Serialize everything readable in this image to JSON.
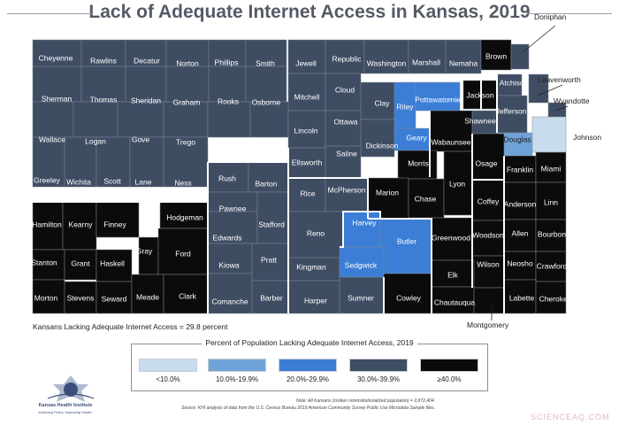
{
  "title": "Lack of Adequate Internet Access in Kansas, 2019",
  "state_stat": "Kansans Lacking Adequate Internet Access = 29.8 percent",
  "legend": {
    "title": "Percent of Population Lacking Adequate Internet Access, 2019",
    "bins": [
      {
        "label": "<10.0%",
        "color": "#c9dcee"
      },
      {
        "label": "10.0%-19.9%",
        "color": "#6fa3d8"
      },
      {
        "label": "20.0%-29.9%",
        "color": "#3c7ed6"
      },
      {
        "label": "30.0%-39.9%",
        "color": "#3f4d63"
      },
      {
        "label": "≥40.0%",
        "color": "#0b0b0b"
      }
    ]
  },
  "label_colors": {
    "dark": "#ffffff",
    "light": "#1a1a1a"
  },
  "border_color": "#ffffff",
  "region_border_color": "#ffffff",
  "counties": [
    {
      "name": "Cheyenne",
      "bin": 3
    },
    {
      "name": "Rawlins",
      "bin": 3
    },
    {
      "name": "Decatur",
      "bin": 3
    },
    {
      "name": "Norton",
      "bin": 3
    },
    {
      "name": "Phillips",
      "bin": 3
    },
    {
      "name": "Smith",
      "bin": 3
    },
    {
      "name": "Jewell",
      "bin": 3
    },
    {
      "name": "Republic",
      "bin": 3
    },
    {
      "name": "Washington",
      "bin": 3
    },
    {
      "name": "Marshall",
      "bin": 3
    },
    {
      "name": "Nemaha",
      "bin": 3
    },
    {
      "name": "Brown",
      "bin": 4
    },
    {
      "name": "Doniphan",
      "bin": 3
    },
    {
      "name": "Sherman",
      "bin": 3
    },
    {
      "name": "Thomas",
      "bin": 3
    },
    {
      "name": "Sheridan",
      "bin": 3
    },
    {
      "name": "Graham",
      "bin": 3
    },
    {
      "name": "Rooks",
      "bin": 3
    },
    {
      "name": "Osborne",
      "bin": 3
    },
    {
      "name": "Mitchell",
      "bin": 3
    },
    {
      "name": "Cloud",
      "bin": 3
    },
    {
      "name": "Clay",
      "bin": 3
    },
    {
      "name": "Riley",
      "bin": 2
    },
    {
      "name": "Pottawatomie",
      "bin": 2
    },
    {
      "name": "Jackson",
      "bin": 4
    },
    {
      "name": "Atchison",
      "bin": 3
    },
    {
      "name": "Leavenworth",
      "bin": 3
    },
    {
      "name": "Jefferson",
      "bin": 3
    },
    {
      "name": "Wyandotte",
      "bin": 3
    },
    {
      "name": "Wallace",
      "bin": 3
    },
    {
      "name": "Logan",
      "bin": 3
    },
    {
      "name": "Gove",
      "bin": 3
    },
    {
      "name": "Trego",
      "bin": 3
    },
    {
      "name": "Ellis",
      "bin": 3
    },
    {
      "name": "Russell",
      "bin": 3
    },
    {
      "name": "Lincoln",
      "bin": 3
    },
    {
      "name": "Ottawa",
      "bin": 3
    },
    {
      "name": "Dickinson",
      "bin": 3
    },
    {
      "name": "Geary",
      "bin": 2
    },
    {
      "name": "Wabaunsee",
      "bin": 4
    },
    {
      "name": "Shawnee",
      "bin": 3
    },
    {
      "name": "Douglas",
      "bin": 1
    },
    {
      "name": "Johnson",
      "bin": 0
    },
    {
      "name": "Ellsworth",
      "bin": 3
    },
    {
      "name": "Saline",
      "bin": 3
    },
    {
      "name": "Morris",
      "bin": 4
    },
    {
      "name": "Osage",
      "bin": 4
    },
    {
      "name": "Franklin",
      "bin": 4
    },
    {
      "name": "Miami",
      "bin": 4
    },
    {
      "name": "Greeley",
      "bin": 3
    },
    {
      "name": "Wichita",
      "bin": 3
    },
    {
      "name": "Scott",
      "bin": 3
    },
    {
      "name": "Lane",
      "bin": 3
    },
    {
      "name": "Ness",
      "bin": 3
    },
    {
      "name": "Rush",
      "bin": 3
    },
    {
      "name": "Barton",
      "bin": 3
    },
    {
      "name": "Rice",
      "bin": 3
    },
    {
      "name": "McPherson",
      "bin": 3
    },
    {
      "name": "Marion",
      "bin": 4
    },
    {
      "name": "Chase",
      "bin": 4
    },
    {
      "name": "Lyon",
      "bin": 4
    },
    {
      "name": "Coffey",
      "bin": 4
    },
    {
      "name": "Anderson",
      "bin": 4
    },
    {
      "name": "Linn",
      "bin": 4
    },
    {
      "name": "Pawnee",
      "bin": 3
    },
    {
      "name": "Hamilton",
      "bin": 4
    },
    {
      "name": "Kearny",
      "bin": 4
    },
    {
      "name": "Finney",
      "bin": 4
    },
    {
      "name": "Hodgeman",
      "bin": 4
    },
    {
      "name": "Edwards",
      "bin": 3
    },
    {
      "name": "Stafford",
      "bin": 3
    },
    {
      "name": "Reno",
      "bin": 3
    },
    {
      "name": "Harvey",
      "bin": 2
    },
    {
      "name": "Butler",
      "bin": 2
    },
    {
      "name": "Greenwood",
      "bin": 4
    },
    {
      "name": "Woodson",
      "bin": 4
    },
    {
      "name": "Allen",
      "bin": 4
    },
    {
      "name": "Bourbon",
      "bin": 4
    },
    {
      "name": "Gray",
      "bin": 4
    },
    {
      "name": "Ford",
      "bin": 4
    },
    {
      "name": "Stanton",
      "bin": 4
    },
    {
      "name": "Grant",
      "bin": 4
    },
    {
      "name": "Haskell",
      "bin": 4
    },
    {
      "name": "Kiowa",
      "bin": 3
    },
    {
      "name": "Pratt",
      "bin": 3
    },
    {
      "name": "Kingman",
      "bin": 3
    },
    {
      "name": "Sedgwick",
      "bin": 2
    },
    {
      "name": "Wilson",
      "bin": 4
    },
    {
      "name": "Neosho",
      "bin": 4
    },
    {
      "name": "Crawford",
      "bin": 4
    },
    {
      "name": "Elk",
      "bin": 4
    },
    {
      "name": "Morton",
      "bin": 4
    },
    {
      "name": "Stevens",
      "bin": 4
    },
    {
      "name": "Seward",
      "bin": 4
    },
    {
      "name": "Meade",
      "bin": 4
    },
    {
      "name": "Clark",
      "bin": 4
    },
    {
      "name": "Comanche",
      "bin": 3
    },
    {
      "name": "Barber",
      "bin": 3
    },
    {
      "name": "Harper",
      "bin": 3
    },
    {
      "name": "Sumner",
      "bin": 3
    },
    {
      "name": "Cowley",
      "bin": 4
    },
    {
      "name": "Chautauqua",
      "bin": 4
    },
    {
      "name": "Montgomery",
      "bin": 4
    },
    {
      "name": "Labette",
      "bin": 4
    },
    {
      "name": "Cherokee",
      "bin": 4
    }
  ],
  "logo": {
    "name": "Kansas Health Institute",
    "tagline": "Informing Policy. Improving Health."
  },
  "note": "Note: All Kansans (civilian noninstitutionalized population) = 2,872,404.",
  "source": "Source: KHI analysis of data from the U.S. Census Bureau 2019 American Community Survey Public Use Microdata Sample files.",
  "watermark": "SCIENCEAQ.COM"
}
